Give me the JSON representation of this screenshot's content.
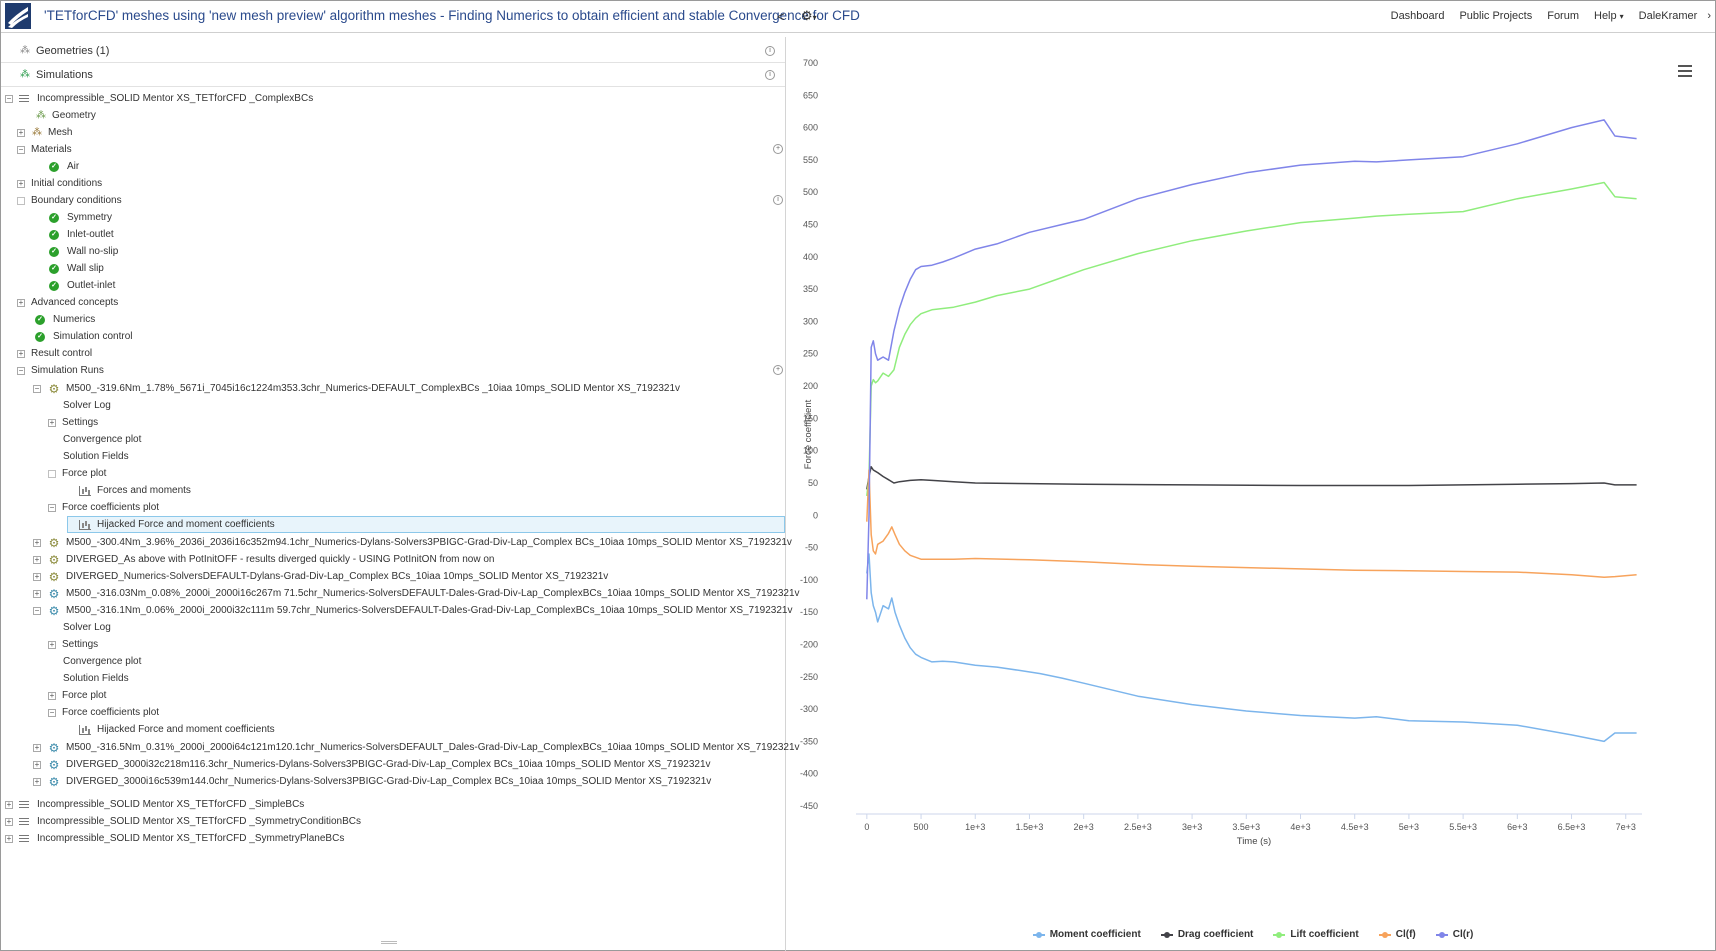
{
  "header": {
    "title": "'TETforCFD' meshes using 'new mesh preview' algorithm meshes - Finding Numerics to obtain efficient and stable Convergence for CFD",
    "nav": [
      "Dashboard",
      "Public Projects",
      "Forum",
      "Help",
      "DaleKramer"
    ]
  },
  "tree": {
    "geometries": "Geometries (1)",
    "simulations": "Simulations",
    "sim1": "Incompressible_SOLID Mentor XS_TETforCFD _ComplexBCs",
    "geometry": "Geometry",
    "mesh": "Mesh",
    "materials": "Materials",
    "air": "Air",
    "initial_conditions": "Initial conditions",
    "boundary_conditions": "Boundary conditions",
    "bcs": [
      "Symmetry",
      "Inlet-outlet",
      "Wall no-slip",
      "Wall slip",
      "Outlet-inlet"
    ],
    "advanced_concepts": "Advanced concepts",
    "numerics": "Numerics",
    "simulation_control": "Simulation control",
    "result_control": "Result control",
    "simulation_runs": "Simulation Runs",
    "run1": "M500_-319.6Nm_1.78%_5671i_7045i16c1224m353.3chr_Numerics-DEFAULT_ComplexBCs _10iaa 10mps_SOLID Mentor XS_7192321v",
    "run1_children": [
      "Solver Log",
      "Settings",
      "Convergence plot",
      "Solution Fields",
      "Force plot",
      "Forces and moments",
      "Force coefficients plot",
      "Hijacked Force and moment coefficients"
    ],
    "run2": "M500_-300.4Nm_3.96%_2036i_2036i16c352m94.1chr_Numerics-Dylans-Solvers3PBIGC-Grad-Div-Lap_Complex BCs_10iaa 10mps_SOLID Mentor XS_7192321v",
    "run3": "DIVERGED_As above with PotInitOFF - results diverged quickly - USING PotInitON from now on",
    "run4": "DIVERGED_Numerics-SolversDEFAULT-Dylans-Grad-Div-Lap_Complex BCs_10iaa 10mps_SOLID Mentor XS_7192321v",
    "run5": "M500_-316.03Nm_0.08%_2000i_2000i16c267m 71.5chr_Numerics-SolversDEFAULT-Dales-Grad-Div-Lap_ComplexBCs_10iaa 10mps_SOLID Mentor XS_7192321v",
    "run6": "M500_-316.1Nm_0.06%_2000i_2000i32c111m 59.7chr_Numerics-SolversDEFAULT-Dales-Grad-Div-Lap_ComplexBCs_10iaa 10mps_SOLID Mentor XS_7192321v",
    "run6_children": [
      "Solver Log",
      "Settings",
      "Convergence plot",
      "Solution Fields",
      "Force plot",
      "Force coefficients plot",
      "Hijacked Force and moment coefficients"
    ],
    "run7": "M500_-316.5Nm_0.31%_2000i_2000i64c121m120.1chr_Numerics-SolversDEFAULT_Dales-Grad-Div-Lap_ComplexBCs_10iaa 10mps_SOLID Mentor XS_7192321v",
    "run8": "DIVERGED_3000i32c218m116.3chr_Numerics-Dylans-Solvers3PBIGC-Grad-Div-Lap_Complex BCs_10iaa 10mps_SOLID Mentor XS_7192321v",
    "run9": "DIVERGED_3000i16c539m144.0chr_Numerics-Dylans-Solvers3PBIGC-Grad-Div-Lap_Complex BCs_10iaa 10mps_SOLID Mentor XS_7192321v",
    "sim2": "Incompressible_SOLID Mentor XS_TETforCFD _SimpleBCs",
    "sim3": "Incompressible_SOLID Mentor XS_TETforCFD _SymmetryConditionBCs",
    "sim4": "Incompressible_SOLID Mentor XS_TETforCFD _SymmetryPlaneBCs"
  },
  "chart_data": {
    "type": "line",
    "title": "",
    "xlabel": "Time (s)",
    "ylabel": "Force coefficient",
    "xlim": [
      -100,
      7150
    ],
    "ylim": [
      -450,
      700
    ],
    "xticks": [
      0,
      500,
      1000,
      1500,
      2000,
      2500,
      3000,
      3500,
      4000,
      4500,
      5000,
      5500,
      6000,
      6500,
      7000
    ],
    "xtick_labels": [
      "0",
      "500",
      "1e+3",
      "1.5e+3",
      "2e+3",
      "2.5e+3",
      "3e+3",
      "3.5e+3",
      "4e+3",
      "4.5e+3",
      "5e+3",
      "5.5e+3",
      "6e+3",
      "6.5e+3",
      "7e+3"
    ],
    "yticks": [
      700,
      650,
      600,
      550,
      500,
      450,
      400,
      350,
      300,
      250,
      200,
      150,
      100,
      50,
      0,
      -50,
      -100,
      -150,
      -200,
      -250,
      -300,
      -350,
      -400,
      -450
    ],
    "grid": false,
    "legend": "bottom",
    "series": [
      {
        "name": "Moment coefficient",
        "color": "#7cb5ec",
        "x": [
          0,
          20,
          40,
          60,
          80,
          100,
          150,
          200,
          230,
          260,
          300,
          350,
          400,
          450,
          500,
          600,
          700,
          800,
          1000,
          1200,
          1400,
          1600,
          1800,
          2000,
          2500,
          3000,
          3500,
          4000,
          4500,
          4700,
          5000,
          5500,
          6000,
          6500,
          6800,
          6900,
          7100
        ],
        "y": [
          -90,
          -60,
          -120,
          -140,
          -150,
          -165,
          -140,
          -145,
          -128,
          -150,
          -170,
          -190,
          -205,
          -215,
          -220,
          -227,
          -226,
          -227,
          -232,
          -235,
          -240,
          -245,
          -252,
          -260,
          -280,
          -293,
          -303,
          -310,
          -314,
          -312,
          -318,
          -320,
          -325,
          -340,
          -350,
          -337,
          -337
        ]
      },
      {
        "name": "Drag coefficient",
        "color": "#434348",
        "x": [
          0,
          20,
          40,
          60,
          80,
          100,
          150,
          200,
          250,
          300,
          400,
          500,
          600,
          800,
          1000,
          1500,
          2000,
          3000,
          4000,
          5000,
          6000,
          6500,
          6800,
          6900,
          7100
        ],
        "y": [
          40,
          60,
          75,
          70,
          68,
          66,
          60,
          55,
          50,
          52,
          54,
          55,
          54,
          52,
          50,
          49,
          48,
          47,
          46,
          46,
          48,
          49,
          50,
          47,
          47
        ]
      },
      {
        "name": "Lift coefficient",
        "color": "#90ed7d",
        "x": [
          0,
          20,
          40,
          60,
          80,
          100,
          150,
          200,
          250,
          300,
          350,
          400,
          450,
          500,
          600,
          700,
          800,
          1000,
          1200,
          1500,
          1800,
          2000,
          2500,
          3000,
          3500,
          4000,
          4500,
          4700,
          5000,
          5500,
          6000,
          6500,
          6800,
          6900,
          7100
        ],
        "y": [
          30,
          60,
          200,
          210,
          205,
          208,
          220,
          215,
          225,
          260,
          280,
          295,
          305,
          312,
          318,
          320,
          322,
          330,
          340,
          350,
          368,
          380,
          405,
          425,
          440,
          453,
          460,
          463,
          466,
          470,
          490,
          505,
          515,
          493,
          490
        ]
      },
      {
        "name": "Cl(f)",
        "color": "#f7a35c",
        "x": [
          0,
          20,
          40,
          60,
          80,
          100,
          150,
          200,
          230,
          260,
          300,
          350,
          400,
          500,
          600,
          800,
          1000,
          1500,
          2000,
          2500,
          3000,
          3500,
          4000,
          4500,
          5000,
          5500,
          6000,
          6500,
          6800,
          6900,
          7100
        ],
        "y": [
          -10,
          70,
          -30,
          -55,
          -60,
          -45,
          -40,
          -28,
          -18,
          -30,
          -45,
          -55,
          -62,
          -68,
          -68,
          -68,
          -67,
          -69,
          -72,
          -76,
          -79,
          -81,
          -83,
          -85,
          -86,
          -87,
          -88,
          -92,
          -96,
          -95,
          -92
        ]
      },
      {
        "name": "Cl(r)",
        "color": "#8085e9",
        "x": [
          0,
          20,
          40,
          60,
          80,
          100,
          150,
          200,
          250,
          300,
          350,
          400,
          450,
          500,
          600,
          700,
          800,
          1000,
          1200,
          1500,
          1800,
          2000,
          2500,
          3000,
          3500,
          4000,
          4500,
          4700,
          5000,
          5500,
          6000,
          6500,
          6800,
          6900,
          7100
        ],
        "y": [
          -130,
          0,
          260,
          270,
          250,
          240,
          245,
          240,
          285,
          320,
          345,
          365,
          380,
          385,
          387,
          392,
          398,
          412,
          420,
          438,
          450,
          458,
          490,
          512,
          530,
          542,
          548,
          547,
          550,
          555,
          575,
          600,
          612,
          587,
          583
        ]
      }
    ]
  }
}
